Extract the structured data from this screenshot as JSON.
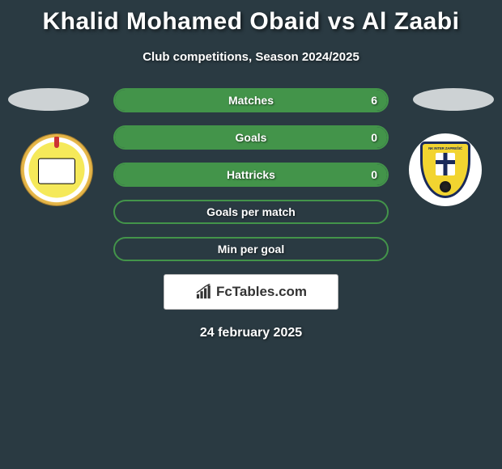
{
  "title": "Khalid Mohamed Obaid vs Al Zaabi",
  "subtitle": "Club competitions, Season 2024/2025",
  "date": "24 february 2025",
  "brand": "FcTables.com",
  "colors": {
    "background": "#2a3a42",
    "stat_border": "#43944a",
    "stat_fill": "#43944a",
    "text": "#ffffff",
    "oval": "#cdd2d4"
  },
  "players": {
    "left": {
      "name": "Khalid Mohamed Obaid"
    },
    "right": {
      "name": "Al Zaabi"
    }
  },
  "stats": [
    {
      "label": "Matches",
      "left_value": "",
      "right_value": "6",
      "left_pct": 0,
      "right_pct": 100
    },
    {
      "label": "Goals",
      "left_value": "",
      "right_value": "0",
      "left_pct": 0,
      "right_pct": 100
    },
    {
      "label": "Hattricks",
      "left_value": "",
      "right_value": "0",
      "left_pct": 0,
      "right_pct": 100
    },
    {
      "label": "Goals per match",
      "left_value": "",
      "right_value": "",
      "left_pct": 0,
      "right_pct": 0
    },
    {
      "label": "Min per goal",
      "left_value": "",
      "right_value": "",
      "left_pct": 0,
      "right_pct": 0
    }
  ]
}
